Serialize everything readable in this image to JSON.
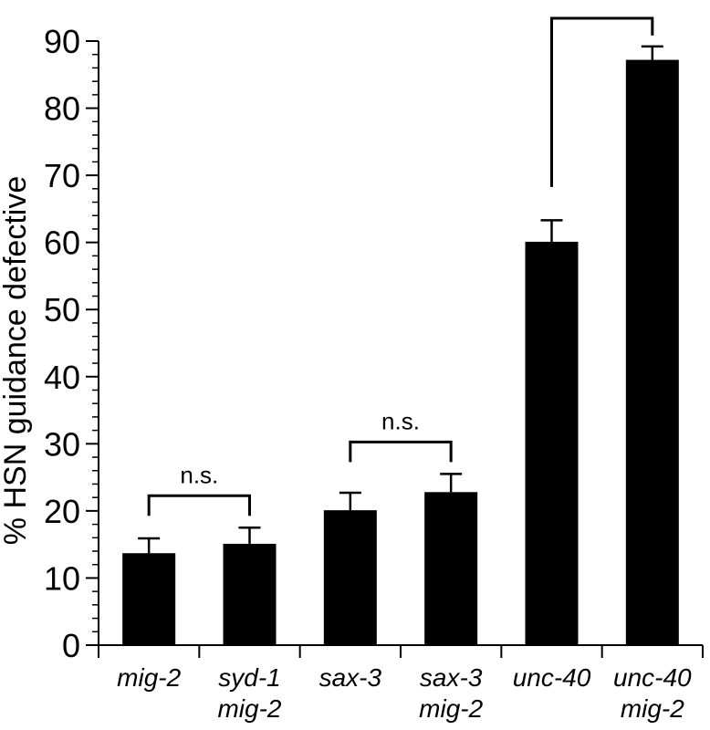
{
  "chart_data": {
    "type": "bar",
    "ylabel": "% HSN guidance defective",
    "ylim": [
      0,
      90
    ],
    "yticks": [
      0,
      10,
      20,
      30,
      40,
      50,
      60,
      70,
      80,
      90
    ],
    "categories": [
      [
        "mig-2"
      ],
      [
        "syd-1",
        "mig-2"
      ],
      [
        "sax-3"
      ],
      [
        "sax-3",
        "mig-2"
      ],
      [
        "unc-40"
      ],
      [
        "unc-40",
        "mig-2"
      ]
    ],
    "values": [
      13.7,
      15.1,
      20.1,
      22.8,
      60.1,
      87.2
    ],
    "errors": [
      2.2,
      2.4,
      2.6,
      2.7,
      3.2,
      2.0
    ],
    "bar_color": "#000000",
    "comparisons": [
      {
        "from": 0,
        "to": 1,
        "label": "n.s."
      },
      {
        "from": 2,
        "to": 3,
        "label": "n.s."
      },
      {
        "from": 4,
        "to": 5,
        "label": "***"
      }
    ]
  }
}
